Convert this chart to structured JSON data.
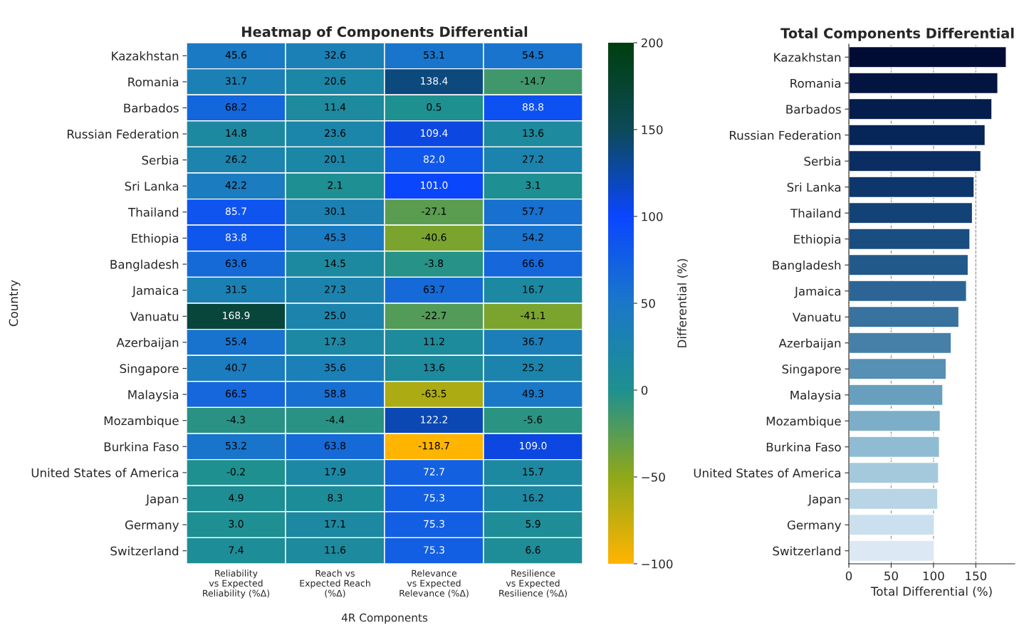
{
  "chart_data": [
    {
      "type": "heatmap",
      "title": "Heatmap of Components Differential",
      "xlabel": "4R Components",
      "ylabel": "Country",
      "clabel": "Differential (%)",
      "categories": [
        "Reliability\nvs Expected\nReliability (%Δ)",
        "Reach vs\nExpected Reach\n(%Δ)",
        "Relevance\nvs Expected\nRelevance (%Δ)",
        "Resilience\nvs Expected\nResilience (%Δ)"
      ],
      "y_categories": [
        "Kazakhstan",
        "Romania",
        "Barbados",
        "Russian Federation",
        "Serbia",
        "Sri Lanka",
        "Thailand",
        "Ethiopia",
        "Bangladesh",
        "Jamaica",
        "Vanuatu",
        "Azerbaijan",
        "Singapore",
        "Malaysia",
        "Mozambique",
        "Burkina Faso",
        "United States of America",
        "Japan",
        "Germany",
        "Switzerland"
      ],
      "cells": [
        [
          45.6,
          32.6,
          53.1,
          54.5
        ],
        [
          31.7,
          20.6,
          138.4,
          -14.7
        ],
        [
          68.2,
          11.4,
          0.5,
          88.8
        ],
        [
          14.8,
          23.6,
          109.4,
          13.6
        ],
        [
          26.2,
          20.1,
          82.0,
          27.2
        ],
        [
          42.2,
          2.1,
          101.0,
          3.1
        ],
        [
          85.7,
          30.1,
          -27.1,
          57.7
        ],
        [
          83.8,
          45.3,
          -40.6,
          54.2
        ],
        [
          63.6,
          14.5,
          -3.8,
          66.6
        ],
        [
          31.5,
          27.3,
          63.7,
          16.7
        ],
        [
          168.9,
          25.0,
          -22.7,
          -41.1
        ],
        [
          55.4,
          17.3,
          11.2,
          36.7
        ],
        [
          40.7,
          35.6,
          13.6,
          25.2
        ],
        [
          66.5,
          58.8,
          -63.5,
          49.3
        ],
        [
          -4.3,
          -4.4,
          122.2,
          -5.6
        ],
        [
          53.2,
          63.8,
          -118.7,
          109.0
        ],
        [
          -0.2,
          17.9,
          72.7,
          15.7
        ],
        [
          4.9,
          8.3,
          75.3,
          16.2
        ],
        [
          3.0,
          17.1,
          75.3,
          5.9
        ],
        [
          7.4,
          11.6,
          75.3,
          6.6
        ]
      ],
      "clim": [
        -100,
        200
      ],
      "cticks": [
        {
          "value": -100,
          "label": "−100"
        },
        {
          "value": -50,
          "label": "−50"
        },
        0,
        50,
        100,
        150,
        200
      ],
      "cell_labels": [
        [
          "45.6",
          "32.6",
          "53.1",
          "54.5"
        ],
        [
          "31.7",
          "20.6",
          "138.4",
          "-14.7"
        ],
        [
          "68.2",
          "11.4",
          "0.5",
          "88.8"
        ],
        [
          "14.8",
          "23.6",
          "109.4",
          "13.6"
        ],
        [
          "26.2",
          "20.1",
          "82.0",
          "27.2"
        ],
        [
          "42.2",
          "2.1",
          "101.0",
          "3.1"
        ],
        [
          "85.7",
          "30.1",
          "-27.1",
          "57.7"
        ],
        [
          "83.8",
          "45.3",
          "-40.6",
          "54.2"
        ],
        [
          "63.6",
          "14.5",
          "-3.8",
          "66.6"
        ],
        [
          "31.5",
          "27.3",
          "63.7",
          "16.7"
        ],
        [
          "168.9",
          "25.0",
          "-22.7",
          "-41.1"
        ],
        [
          "55.4",
          "17.3",
          "11.2",
          "36.7"
        ],
        [
          "40.7",
          "35.6",
          "13.6",
          "25.2"
        ],
        [
          "66.5",
          "58.8",
          "-63.5",
          "49.3"
        ],
        [
          "-4.3",
          "-4.4",
          "122.2",
          "-5.6"
        ],
        [
          "53.2",
          "63.8",
          "-118.7",
          "109.0"
        ],
        [
          "-0.2",
          "17.9",
          "72.7",
          "15.7"
        ],
        [
          "4.9",
          "8.3",
          "75.3",
          "16.2"
        ],
        [
          "3.0",
          "17.1",
          "75.3",
          "5.9"
        ],
        [
          "7.4",
          "11.6",
          "75.3",
          "6.6"
        ]
      ]
    },
    {
      "type": "bar",
      "orientation": "horizontal",
      "title": "Total Components Differential",
      "xlabel": "Total Differential (%)",
      "categories": [
        "Kazakhstan",
        "Romania",
        "Barbados",
        "Russian Federation",
        "Serbia",
        "Sri Lanka",
        "Thailand",
        "Ethiopia",
        "Bangladesh",
        "Jamaica",
        "Vanuatu",
        "Azerbaijan",
        "Singapore",
        "Malaysia",
        "Mozambique",
        "Burkina Faso",
        "United States of America",
        "Japan",
        "Germany",
        "Switzerland"
      ],
      "values": [
        186,
        176,
        169,
        161,
        156,
        148,
        146,
        143,
        141,
        139,
        130,
        121,
        115,
        111,
        108,
        107,
        106,
        105,
        101,
        101
      ],
      "colors": [
        "#010c35",
        "#021540",
        "#041d4c",
        "#062558",
        "#0a2d62",
        "#0d376c",
        "#134276",
        "#1a4d80",
        "#22598b",
        "#2c6595",
        "#38729f",
        "#4680a9",
        "#5690b4",
        "#689fbf",
        "#7caec9",
        "#90bcd3",
        "#a4c9dd",
        "#b8d5e6",
        "#cbe0ee",
        "#dce9f4"
      ],
      "xlim": [
        0,
        196
      ],
      "xticks": [
        0,
        50,
        100,
        150
      ],
      "grid": "x"
    }
  ]
}
